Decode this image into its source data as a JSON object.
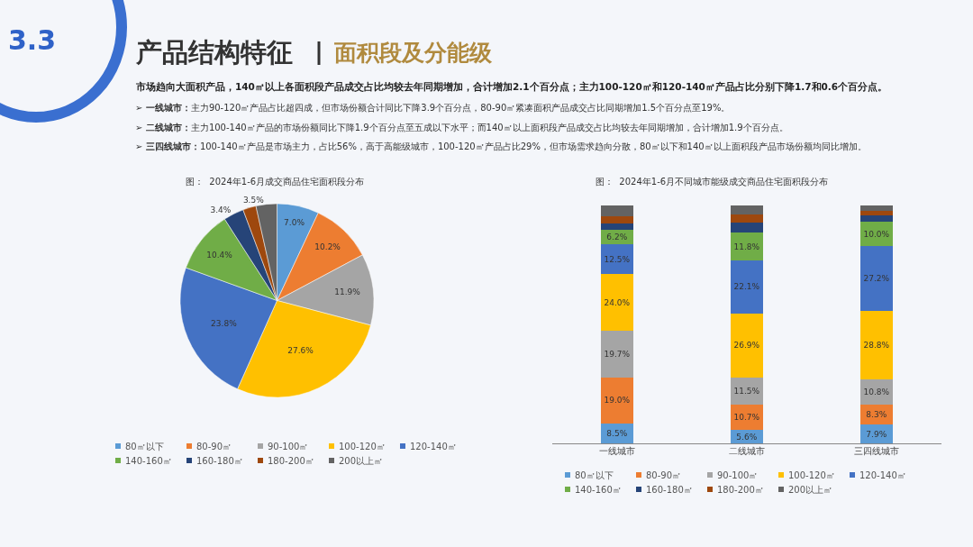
{
  "chart_data": [
    {
      "type": "other",
      "title": "产品结构特征",
      "subtitle": "面积段及分能级",
      "annotations": [
        "3.3",
        "市场趋向大面积产品，140㎡以上各面积段产品成交占比均较去年同期增加，合计增加2.1个百分点；主力100-120㎡和120-140㎡产品占比分别下降1.7和0.6个百分点。",
        "➢ 一线城市：主力90-120㎡产品占比超四成，但市场份额合计同比下降3.9个百分点，80-90㎡紧凑面积产品成交占比同期增加1.5个百分点至19%。",
        "➢ 二线城市：主力100-140㎡产品的市场份额同比下降1.9个百分点至五成以下水平；而140㎡以上面积段产品成交占比均较去年同期增加，合计增加1.9个百分点。",
        "➢ 三四线城市：100-140㎡产品是市场主力，占比56%，高于高能级城市，100-120㎡产品占比29%，但市场需求趋向分散，80㎡以下和140㎡以上面积段产品市场份额均同比增加。"
      ]
    },
    {
      "type": "pie",
      "title": "图：  2024年1-6月成交商品住宅面积段分布",
      "legend": "bottom",
      "categories": [
        "80㎡以下",
        "80-90㎡",
        "90-100㎡",
        "100-120㎡",
        "120-140㎡",
        "140-160㎡",
        "160-180㎡",
        "180-200㎡",
        "200以上㎡"
      ],
      "values": [
        7.0,
        10.2,
        11.9,
        27.6,
        23.8,
        10.4,
        3.4,
        2.2,
        3.5
      ],
      "value_labels": [
        "7.0%",
        "10.2%",
        "11.9%",
        "27.6%",
        "23.8%",
        "10.4%",
        "3.4%",
        null,
        "3.5%"
      ],
      "colors": [
        "#5b9bd5",
        "#ed7d31",
        "#a5a5a5",
        "#ffc000",
        "#4472c4",
        "#70ad47",
        "#264478",
        "#9e480e",
        "#636363"
      ]
    },
    {
      "type": "bar",
      "stacked": true,
      "title": "图：  2024年1-6月不同城市能级成交商品住宅面积段分布",
      "legend": "bottom",
      "tick_labels": "x",
      "ylim": [
        0,
        100
      ],
      "categories": [
        "一线城市",
        "二线城市",
        "三四线城市"
      ],
      "series": [
        {
          "name": "80㎡以下",
          "color": "#5b9bd5",
          "values": [
            8.5,
            5.6,
            7.9
          ],
          "value_labels": [
            "8.5%",
            "5.6%",
            "7.9%"
          ]
        },
        {
          "name": "80-90㎡",
          "color": "#ed7d31",
          "values": [
            19.0,
            10.7,
            8.3
          ],
          "value_labels": [
            "19.0%",
            "10.7%",
            "8.3%"
          ]
        },
        {
          "name": "90-100㎡",
          "color": "#a5a5a5",
          "values": [
            19.7,
            11.5,
            10.8
          ],
          "value_labels": [
            "19.7%",
            "11.5%",
            "10.8%"
          ]
        },
        {
          "name": "100-120㎡",
          "color": "#ffc000",
          "values": [
            24.0,
            26.9,
            28.8
          ],
          "value_labels": [
            "24.0%",
            "26.9%",
            "28.8%"
          ]
        },
        {
          "name": "120-140㎡",
          "color": "#4472c4",
          "values": [
            12.5,
            22.1,
            27.2
          ],
          "value_labels": [
            "12.5%",
            "22.1%",
            "27.2%"
          ]
        },
        {
          "name": "140-160㎡",
          "color": "#70ad47",
          "values": [
            6.2,
            11.8,
            10.0
          ],
          "value_labels": [
            "6.2%",
            "11.8%",
            "10.0%"
          ]
        },
        {
          "name": "160-180㎡",
          "color": "#264478",
          "values": [
            2.5,
            4.2,
            2.8
          ],
          "value_labels": [
            null,
            null,
            null
          ]
        },
        {
          "name": "180-200㎡",
          "color": "#9e480e",
          "values": [
            3.2,
            3.4,
            2.0
          ],
          "value_labels": [
            null,
            null,
            null
          ]
        },
        {
          "name": "200以上㎡",
          "color": "#636363",
          "values": [
            4.4,
            3.8,
            2.2
          ],
          "value_labels": [
            null,
            null,
            null
          ]
        }
      ]
    }
  ]
}
